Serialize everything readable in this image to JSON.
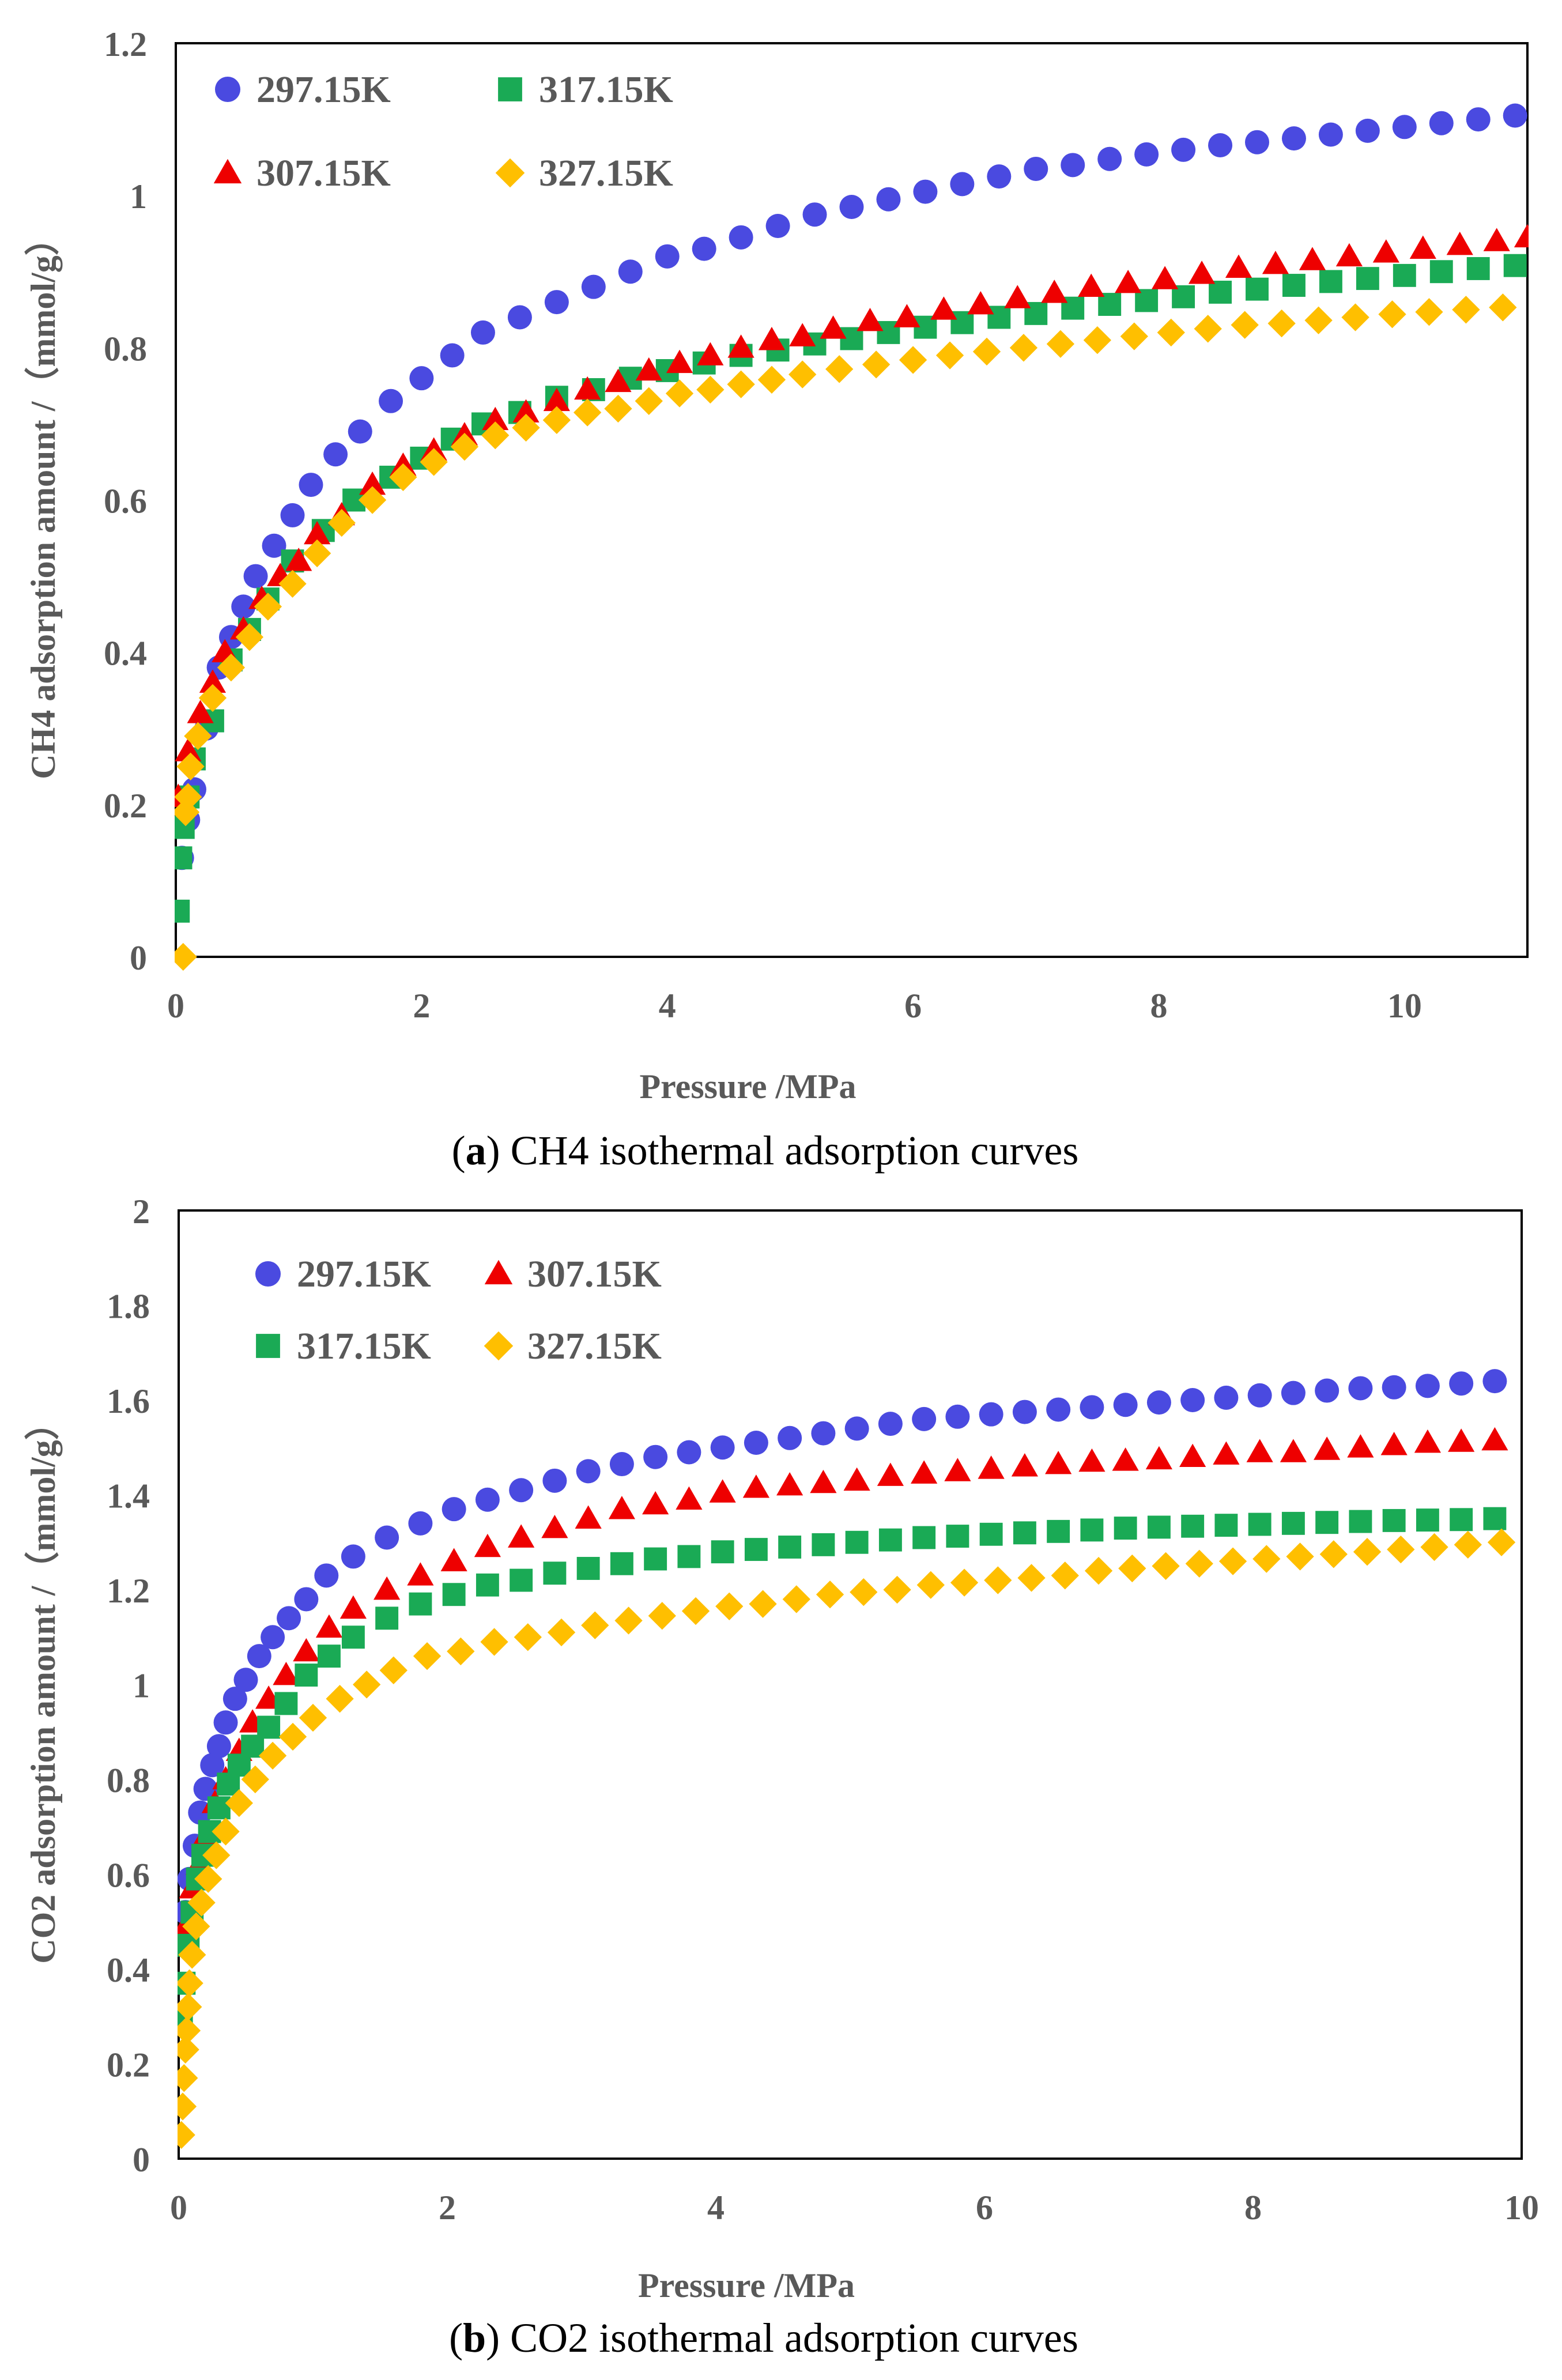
{
  "chart_data": [
    {
      "type": "scatter",
      "caption": {
        "letter": "a",
        "text": ") CH4 isothermal adsorption curves",
        "open": "("
      },
      "xlabel": "Pressure /MPa",
      "ylabel": "CH4 adsorption amount /（mmol/g）",
      "xlim": [
        0,
        11
      ],
      "ylim": [
        0,
        1.2
      ],
      "xticks": [
        "0",
        "2",
        "4",
        "6",
        "8",
        "10"
      ],
      "xtick_values": [
        0,
        2,
        4,
        6,
        8,
        10
      ],
      "yticks": [
        "0",
        "0.2",
        "0.4",
        "0.6",
        "0.8",
        "1",
        "1.2"
      ],
      "ytick_values": [
        0,
        0.2,
        0.4,
        0.6,
        0.8,
        1.0,
        1.2
      ],
      "grid": false,
      "legend_layout": "2x2 column-major, top-left",
      "series": [
        {
          "name": "297.15K",
          "marker": "circle",
          "color": "#4A4AE0",
          "x": [
            0.05,
            0.1,
            0.15,
            0.25,
            0.35,
            0.45,
            0.55,
            0.65,
            0.8,
            0.95,
            1.1,
            1.3,
            1.5,
            1.75,
            2.0,
            2.25,
            2.5,
            2.8,
            3.1,
            3.4,
            3.7,
            4.0,
            4.3,
            4.6,
            4.9,
            5.2,
            5.5,
            5.8,
            6.1,
            6.4,
            6.7,
            7.0,
            7.3,
            7.6,
            7.9,
            8.2,
            8.5,
            8.8,
            9.1,
            9.4,
            9.7,
            10.0,
            10.3,
            10.6,
            10.9
          ],
          "y": [
            0.13,
            0.18,
            0.22,
            0.3,
            0.38,
            0.42,
            0.46,
            0.5,
            0.54,
            0.58,
            0.62,
            0.66,
            0.69,
            0.73,
            0.76,
            0.79,
            0.82,
            0.84,
            0.86,
            0.88,
            0.9,
            0.92,
            0.93,
            0.945,
            0.96,
            0.975,
            0.985,
            0.995,
            1.005,
            1.015,
            1.025,
            1.035,
            1.04,
            1.048,
            1.054,
            1.06,
            1.066,
            1.07,
            1.075,
            1.08,
            1.085,
            1.09,
            1.095,
            1.1,
            1.105
          ]
        },
        {
          "name": "317.15K",
          "marker": "square",
          "color": "#1AAA55",
          "x": [
            0.02,
            0.04,
            0.06,
            0.1,
            0.15,
            0.3,
            0.45,
            0.6,
            0.75,
            0.95,
            1.2,
            1.45,
            1.75,
            2.0,
            2.25,
            2.5,
            2.8,
            3.1,
            3.4,
            3.7,
            4.0,
            4.3,
            4.6,
            4.9,
            5.2,
            5.5,
            5.8,
            6.1,
            6.4,
            6.7,
            7.0,
            7.3,
            7.6,
            7.9,
            8.2,
            8.5,
            8.8,
            9.1,
            9.4,
            9.7,
            10.0,
            10.3,
            10.6,
            10.9
          ],
          "y": [
            0.06,
            0.13,
            0.17,
            0.21,
            0.26,
            0.31,
            0.39,
            0.43,
            0.47,
            0.52,
            0.56,
            0.6,
            0.63,
            0.655,
            0.68,
            0.7,
            0.715,
            0.735,
            0.745,
            0.76,
            0.77,
            0.78,
            0.79,
            0.797,
            0.805,
            0.812,
            0.82,
            0.827,
            0.833,
            0.84,
            0.845,
            0.852,
            0.857,
            0.862,
            0.867,
            0.873,
            0.877,
            0.882,
            0.887,
            0.891,
            0.895,
            0.9,
            0.904,
            0.908
          ]
        },
        {
          "name": "307.15K",
          "marker": "triangle",
          "color": "#EE0000",
          "x": [
            0.02,
            0.1,
            0.2,
            0.3,
            0.4,
            0.55,
            0.7,
            0.85,
            1.0,
            1.15,
            1.35,
            1.6,
            1.85,
            2.1,
            2.35,
            2.6,
            2.85,
            3.1,
            3.35,
            3.6,
            3.85,
            4.1,
            4.35,
            4.6,
            4.85,
            5.1,
            5.35,
            5.65,
            5.95,
            6.25,
            6.55,
            6.85,
            7.15,
            7.45,
            7.75,
            8.05,
            8.35,
            8.65,
            8.95,
            9.25,
            9.55,
            9.85,
            10.15,
            10.45,
            10.75,
            11.0
          ],
          "y": [
            0.21,
            0.27,
            0.32,
            0.36,
            0.4,
            0.43,
            0.47,
            0.5,
            0.52,
            0.555,
            0.58,
            0.62,
            0.645,
            0.665,
            0.685,
            0.705,
            0.715,
            0.73,
            0.745,
            0.755,
            0.77,
            0.78,
            0.79,
            0.8,
            0.81,
            0.815,
            0.825,
            0.835,
            0.84,
            0.85,
            0.857,
            0.865,
            0.872,
            0.88,
            0.885,
            0.89,
            0.897,
            0.905,
            0.91,
            0.915,
            0.92,
            0.925,
            0.93,
            0.935,
            0.94,
            0.945
          ]
        },
        {
          "name": "327.15K",
          "marker": "diamond",
          "color": "#FFBF00",
          "x": [
            0.06,
            0.08,
            0.1,
            0.12,
            0.18,
            0.3,
            0.45,
            0.6,
            0.75,
            0.95,
            1.15,
            1.35,
            1.6,
            1.85,
            2.1,
            2.35,
            2.6,
            2.85,
            3.1,
            3.35,
            3.6,
            3.85,
            4.1,
            4.35,
            4.6,
            4.85,
            5.1,
            5.4,
            5.7,
            6.0,
            6.3,
            6.6,
            6.9,
            7.2,
            7.5,
            7.8,
            8.1,
            8.4,
            8.7,
            9.0,
            9.3,
            9.6,
            9.9,
            10.2,
            10.5,
            10.8
          ],
          "y": [
            0.0,
            0.19,
            0.21,
            0.25,
            0.29,
            0.34,
            0.38,
            0.42,
            0.46,
            0.49,
            0.53,
            0.57,
            0.6,
            0.63,
            0.65,
            0.67,
            0.685,
            0.695,
            0.705,
            0.715,
            0.72,
            0.73,
            0.74,
            0.745,
            0.752,
            0.758,
            0.765,
            0.772,
            0.778,
            0.784,
            0.79,
            0.795,
            0.8,
            0.805,
            0.81,
            0.815,
            0.82,
            0.825,
            0.83,
            0.832,
            0.836,
            0.84,
            0.844,
            0.847,
            0.85,
            0.853
          ]
        }
      ]
    },
    {
      "type": "scatter",
      "caption": {
        "letter": "b",
        "text": ") CO2 isothermal adsorption curves",
        "open": "("
      },
      "xlabel": "Pressure /MPa",
      "ylabel": "CO2 adsorption amount /（mmol/g）",
      "xlim": [
        0,
        10
      ],
      "ylim": [
        0,
        2
      ],
      "xticks": [
        "0",
        "2",
        "4",
        "6",
        "8",
        "10"
      ],
      "xtick_values": [
        0,
        2,
        4,
        6,
        8,
        10
      ],
      "yticks": [
        "0",
        "0.2",
        "0.4",
        "0.6",
        "0.8",
        "1",
        "1.2",
        "1.4",
        "1.6",
        "1.8",
        "2"
      ],
      "ytick_values": [
        0,
        0.2,
        0.4,
        0.6,
        0.8,
        1.0,
        1.2,
        1.4,
        1.6,
        1.8,
        2.0
      ],
      "grid": false,
      "legend_layout": "2x2 row-major, top-left",
      "series": [
        {
          "name": "297.15K",
          "marker": "circle",
          "color": "#4A4AE0",
          "x": [
            0.02,
            0.05,
            0.08,
            0.12,
            0.16,
            0.2,
            0.25,
            0.3,
            0.35,
            0.42,
            0.5,
            0.6,
            0.7,
            0.82,
            0.95,
            1.1,
            1.3,
            1.55,
            1.8,
            2.05,
            2.3,
            2.55,
            2.8,
            3.05,
            3.3,
            3.55,
            3.8,
            4.05,
            4.3,
            4.55,
            4.8,
            5.05,
            5.3,
            5.55,
            5.8,
            6.05,
            6.3,
            6.55,
            6.8,
            7.05,
            7.3,
            7.55,
            7.8,
            8.05,
            8.3,
            8.55,
            8.8,
            9.05,
            9.3,
            9.55,
            9.8
          ],
          "y": [
            0.46,
            0.52,
            0.59,
            0.66,
            0.73,
            0.78,
            0.83,
            0.87,
            0.92,
            0.97,
            1.01,
            1.06,
            1.1,
            1.14,
            1.18,
            1.23,
            1.27,
            1.31,
            1.34,
            1.37,
            1.39,
            1.41,
            1.43,
            1.45,
            1.465,
            1.48,
            1.49,
            1.5,
            1.51,
            1.52,
            1.53,
            1.54,
            1.55,
            1.56,
            1.565,
            1.57,
            1.575,
            1.58,
            1.585,
            1.59,
            1.595,
            1.6,
            1.605,
            1.61,
            1.615,
            1.62,
            1.625,
            1.627,
            1.63,
            1.635,
            1.64
          ]
        },
        {
          "name": "307.15K",
          "marker": "triangle",
          "color": "#EE0000",
          "x": [
            0.05,
            0.1,
            0.15,
            0.2,
            0.27,
            0.35,
            0.45,
            0.55,
            0.67,
            0.8,
            0.95,
            1.12,
            1.3,
            1.55,
            1.8,
            2.05,
            2.3,
            2.55,
            2.8,
            3.05,
            3.3,
            3.55,
            3.8,
            4.05,
            4.3,
            4.55,
            4.8,
            5.05,
            5.3,
            5.55,
            5.8,
            6.05,
            6.3,
            6.55,
            6.8,
            7.05,
            7.3,
            7.55,
            7.8,
            8.05,
            8.3,
            8.55,
            8.8,
            9.05,
            9.3,
            9.55,
            9.8
          ],
          "y": [
            0.49,
            0.57,
            0.62,
            0.68,
            0.75,
            0.8,
            0.86,
            0.92,
            0.97,
            1.02,
            1.07,
            1.12,
            1.16,
            1.2,
            1.23,
            1.26,
            1.29,
            1.31,
            1.33,
            1.35,
            1.37,
            1.38,
            1.39,
            1.405,
            1.415,
            1.42,
            1.425,
            1.43,
            1.44,
            1.445,
            1.45,
            1.455,
            1.46,
            1.465,
            1.47,
            1.472,
            1.475,
            1.48,
            1.485,
            1.49,
            1.49,
            1.495,
            1.5,
            1.505,
            1.51,
            1.512,
            1.515
          ]
        },
        {
          "name": "317.15K",
          "marker": "square",
          "color": "#1AAA55",
          "x": [
            0.02,
            0.04,
            0.07,
            0.1,
            0.14,
            0.18,
            0.23,
            0.3,
            0.37,
            0.45,
            0.55,
            0.67,
            0.8,
            0.95,
            1.12,
            1.3,
            1.55,
            1.8,
            2.05,
            2.3,
            2.55,
            2.8,
            3.05,
            3.3,
            3.55,
            3.8,
            4.05,
            4.3,
            4.55,
            4.8,
            5.05,
            5.3,
            5.55,
            5.8,
            6.05,
            6.3,
            6.55,
            6.8,
            7.05,
            7.3,
            7.55,
            7.8,
            8.05,
            8.3,
            8.55,
            8.8,
            9.05,
            9.3,
            9.55,
            9.8
          ],
          "y": [
            0.3,
            0.37,
            0.45,
            0.52,
            0.59,
            0.64,
            0.69,
            0.74,
            0.79,
            0.83,
            0.87,
            0.91,
            0.96,
            1.02,
            1.06,
            1.1,
            1.14,
            1.17,
            1.19,
            1.21,
            1.22,
            1.235,
            1.245,
            1.255,
            1.265,
            1.27,
            1.28,
            1.285,
            1.29,
            1.295,
            1.3,
            1.305,
            1.31,
            1.313,
            1.317,
            1.32,
            1.323,
            1.326,
            1.33,
            1.332,
            1.334,
            1.336,
            1.338,
            1.34,
            1.342,
            1.344,
            1.346,
            1.347,
            1.348,
            1.35
          ]
        },
        {
          "name": "327.15K",
          "marker": "diamond",
          "color": "#FFBF00",
          "x": [
            0.02,
            0.03,
            0.04,
            0.05,
            0.06,
            0.07,
            0.08,
            0.1,
            0.13,
            0.17,
            0.22,
            0.28,
            0.35,
            0.45,
            0.57,
            0.7,
            0.85,
            1.0,
            1.2,
            1.4,
            1.6,
            1.85,
            2.1,
            2.35,
            2.6,
            2.85,
            3.1,
            3.35,
            3.6,
            3.85,
            4.1,
            4.35,
            4.6,
            4.85,
            5.1,
            5.35,
            5.6,
            5.85,
            6.1,
            6.35,
            6.6,
            6.85,
            7.1,
            7.35,
            7.6,
            7.85,
            8.1,
            8.35,
            8.6,
            8.85,
            9.1,
            9.35,
            9.6,
            9.85
          ],
          "y": [
            0.05,
            0.11,
            0.17,
            0.23,
            0.27,
            0.32,
            0.37,
            0.43,
            0.49,
            0.54,
            0.59,
            0.64,
            0.69,
            0.75,
            0.8,
            0.85,
            0.89,
            0.93,
            0.97,
            1.0,
            1.03,
            1.06,
            1.07,
            1.09,
            1.1,
            1.11,
            1.125,
            1.135,
            1.145,
            1.155,
            1.165,
            1.17,
            1.18,
            1.19,
            1.195,
            1.2,
            1.21,
            1.215,
            1.22,
            1.225,
            1.23,
            1.24,
            1.245,
            1.25,
            1.255,
            1.26,
            1.265,
            1.27,
            1.275,
            1.28,
            1.285,
            1.29,
            1.295,
            1.3
          ]
        }
      ]
    }
  ]
}
